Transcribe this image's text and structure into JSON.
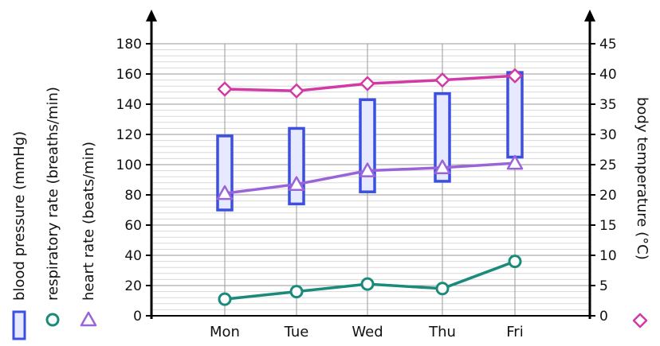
{
  "chart_data": {
    "type": "line",
    "categories": [
      "Mon",
      "Tue",
      "Wed",
      "Thu",
      "Fri"
    ],
    "left_axis": {
      "ylim": [
        0,
        180
      ],
      "ticks": [
        "0",
        "20",
        "40",
        "60",
        "80",
        "100",
        "120",
        "140",
        "160",
        "180"
      ],
      "labels": [
        "blood pressure (mmHg)",
        "respiratory rate (breaths/min)",
        "heart rate (beats/min)"
      ]
    },
    "right_axis": {
      "ylim": [
        0,
        45
      ],
      "ticks": [
        "0",
        "5",
        "10",
        "15",
        "20",
        "25",
        "30",
        "35",
        "40",
        "45"
      ],
      "label": "body temperature (°C)"
    },
    "grid": true,
    "series": [
      {
        "name": "blood pressure (mmHg)",
        "kind": "range-bar",
        "axis": "left",
        "color": "#3b4fe0",
        "fill": "#e6e9ff",
        "low": [
          70,
          74,
          82,
          89,
          105
        ],
        "high": [
          119,
          124,
          143,
          147,
          161
        ]
      },
      {
        "name": "respiratory rate (breaths/min)",
        "kind": "line",
        "marker": "circle",
        "axis": "left",
        "color": "#1a8a7a",
        "values": [
          11,
          16,
          21,
          18,
          36
        ]
      },
      {
        "name": "heart rate (beats/min)",
        "kind": "line",
        "marker": "triangle",
        "axis": "left",
        "color": "#9a64d9",
        "values": [
          81,
          87,
          96,
          98,
          101
        ]
      },
      {
        "name": "body temperature (°C)",
        "kind": "line",
        "marker": "diamond",
        "axis": "right",
        "color": "#d23aa5",
        "values": [
          37.5,
          37.2,
          38.4,
          39.0,
          39.7
        ]
      }
    ]
  }
}
